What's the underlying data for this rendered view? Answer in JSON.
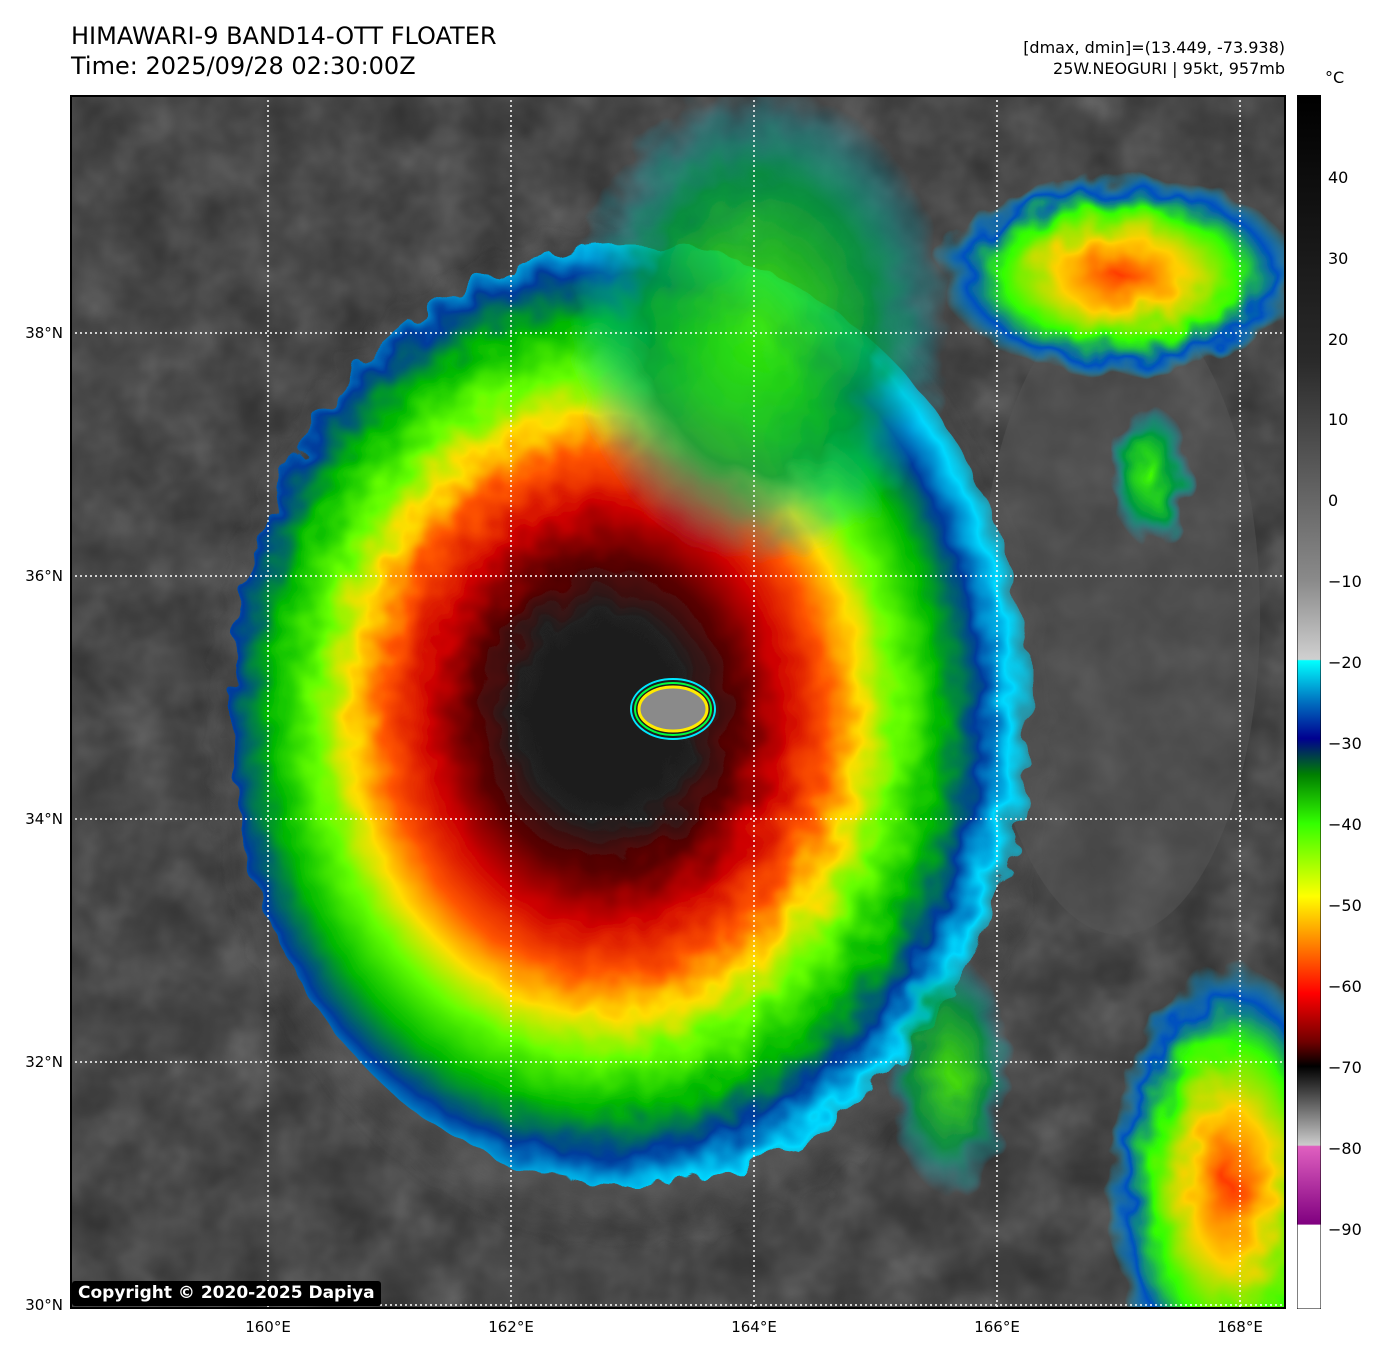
{
  "header": {
    "title_line1": "HIMAWARI-9 BAND14-OTT FLOATER",
    "title_line2": "Time: 2025/09/28 02:30:00Z",
    "info_line1": "[dmax, dmin]=(13.449, -73.938)",
    "info_line2": "25W.NEOGURI | 95kt, 957mb"
  },
  "map": {
    "lat_labels": [
      "38°N",
      "36°N",
      "34°N",
      "32°N",
      "30°N"
    ],
    "lon_labels": [
      "160°E",
      "162°E",
      "164°E",
      "166°E",
      "168°E"
    ],
    "copyright": "Copyright © 2020-2025 Dapiya"
  },
  "colorbar": {
    "unit": "°C",
    "ticks": [
      "40",
      "30",
      "20",
      "10",
      "0",
      "−10",
      "−20",
      "−30",
      "−40",
      "−50",
      "−60",
      "−70",
      "−80",
      "−90"
    ]
  }
}
